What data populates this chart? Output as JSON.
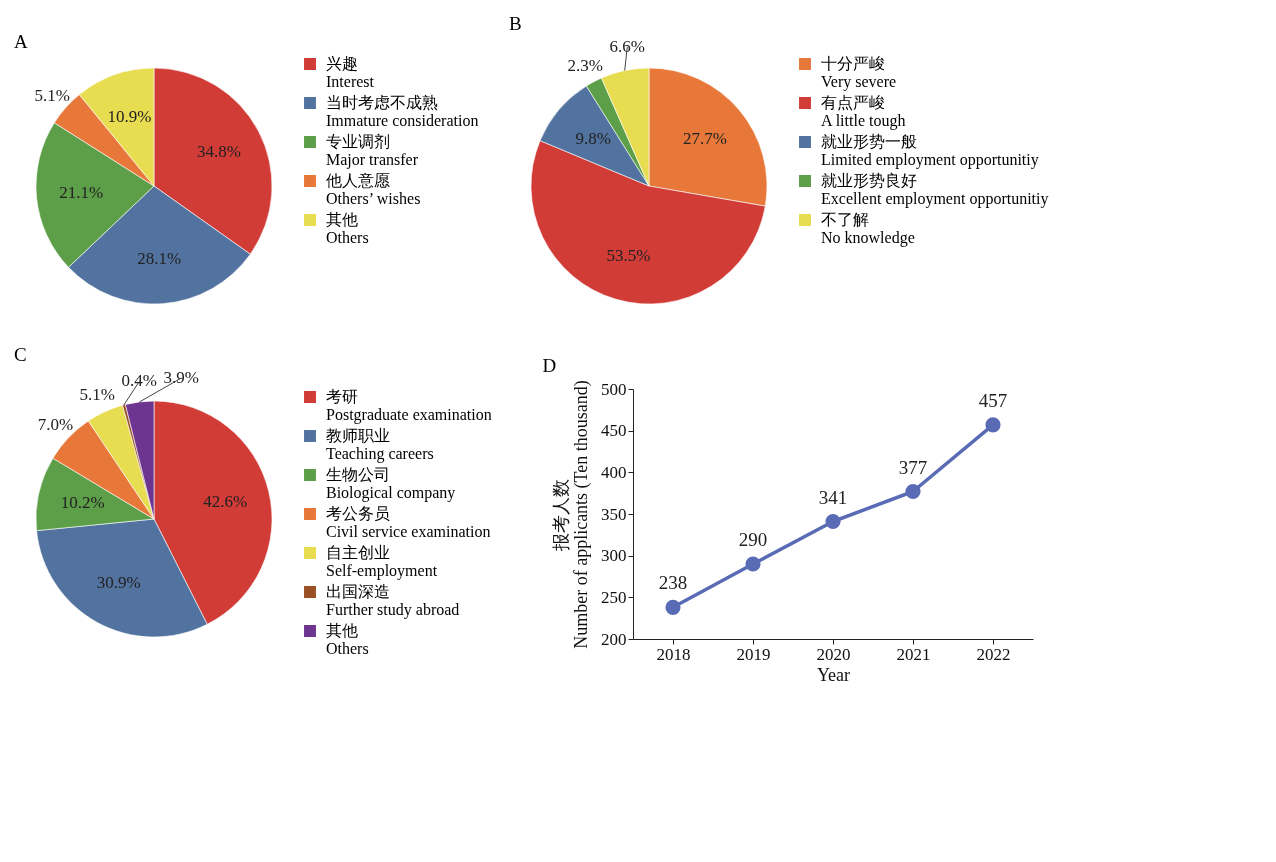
{
  "chart_data": [
    {
      "type": "pie",
      "title": "A",
      "categories": [
        "兴趣\nInterest",
        "当时考虑不成熟\nImmature consideration",
        "专业调剂\nMajor transfer",
        "他人意愿\nOthers’ wishes",
        "其他\nOthers"
      ],
      "values": [
        34.8,
        28.1,
        21.1,
        5.1,
        10.9
      ],
      "value_labels": [
        "34.8%",
        "28.1%",
        "21.1%",
        "5.1%",
        "10.9%"
      ],
      "colors": [
        "#d13c37",
        "#52739f",
        "#5d9e48",
        "#e8773a",
        "#e8dc50"
      ],
      "legend": "right"
    },
    {
      "type": "pie",
      "title": "B",
      "categories": [
        "十分严峻\nVery severe",
        "有点严峻\nA little tough",
        "就业形势一般\nLimited employment opportunitiy",
        "就业形势良好\nExcellent employment opportunitiy",
        "不了解\nNo knowledge"
      ],
      "values": [
        27.7,
        53.5,
        9.8,
        2.3,
        6.6
      ],
      "value_labels": [
        "27.7%",
        "53.5%",
        "9.8%",
        "2.3%",
        "6.6%"
      ],
      "colors": [
        "#e8773a",
        "#d13c37",
        "#52739f",
        "#5d9e48",
        "#e8dc50"
      ],
      "legend": "right"
    },
    {
      "type": "pie",
      "title": "C",
      "categories": [
        "考研\nPostgraduate examination",
        "教师职业\nTeaching careers",
        "生物公司\nBiological company",
        "考公务员\nCivil service examination",
        "自主创业\nSelf-employment",
        "出国深造\nFurther study abroad",
        "其他\nOthers"
      ],
      "values": [
        42.6,
        30.9,
        10.2,
        7.0,
        5.1,
        0.4,
        3.9
      ],
      "value_labels": [
        "42.6%",
        "30.9%",
        "10.2%",
        "7.0%",
        "5.1%",
        "0.4%",
        "3.9%"
      ],
      "colors": [
        "#d13c37",
        "#52739f",
        "#5d9e48",
        "#e8773a",
        "#e8dc50",
        "#9a4f24",
        "#6e3590"
      ],
      "legend": "right"
    },
    {
      "type": "line",
      "title": "D",
      "categories": [
        "2018",
        "2019",
        "2020",
        "2021",
        "2022"
      ],
      "series": [
        {
          "color": "#5a6bb5",
          "values": [
            238,
            290,
            341,
            377,
            457
          ]
        }
      ],
      "xlabel": "Year",
      "ylabel": "报考人数\nNumber of applicants (Ten thousand)",
      "ylim": [
        200,
        500
      ],
      "yticks": [
        200,
        250,
        300,
        350,
        400,
        450,
        500
      ],
      "marker": "circle",
      "line_style": "solid",
      "data_labels": true
    }
  ]
}
